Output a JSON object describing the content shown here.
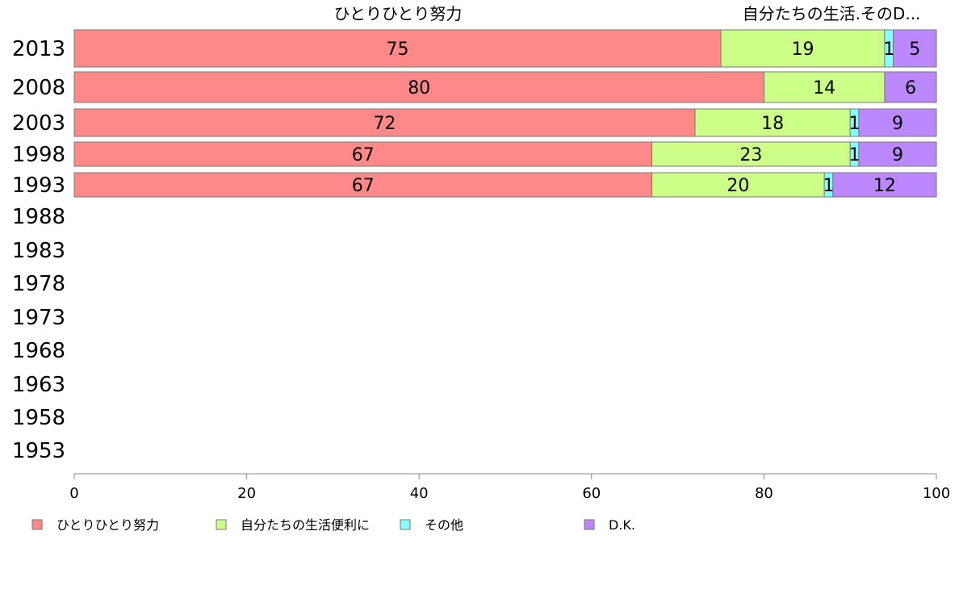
{
  "chart_data": {
    "type": "bar",
    "orientation": "horizontal",
    "stacked": true,
    "categories": [
      "2013",
      "2008",
      "2003",
      "1998",
      "1993",
      "1988",
      "1983",
      "1978",
      "1973",
      "1968",
      "1963",
      "1958",
      "1953"
    ],
    "series": [
      {
        "name": "ひとりひとり努力",
        "color": "#ff8888",
        "values": [
          75,
          80,
          72,
          67,
          67,
          null,
          null,
          null,
          null,
          null,
          null,
          null,
          null
        ]
      },
      {
        "name": "自分たちの生活便利に",
        "color": "#ccff88",
        "values": [
          19,
          14,
          18,
          23,
          20,
          null,
          null,
          null,
          null,
          null,
          null,
          null,
          null
        ]
      },
      {
        "name": "その他",
        "color": "#88ffff",
        "values": [
          1,
          0,
          1,
          1,
          1,
          null,
          null,
          null,
          null,
          null,
          null,
          null,
          null
        ]
      },
      {
        "name": "D.K.",
        "color": "#bb88ff",
        "values": [
          5,
          6,
          9,
          9,
          12,
          null,
          null,
          null,
          null,
          null,
          null,
          null,
          null
        ]
      }
    ],
    "segment_labels": [
      [
        "75",
        "19",
        "1",
        "5"
      ],
      [
        "80",
        "14",
        "",
        "6"
      ],
      [
        "72",
        "18",
        "1",
        "9"
      ],
      [
        "67",
        "23",
        "1",
        "9"
      ],
      [
        "67",
        "20",
        "1",
        "12"
      ]
    ],
    "column_headers": [
      "ひとりひとり努力",
      "自分たちの生活.そのD..."
    ],
    "xlim": [
      0,
      100
    ],
    "xticks": [
      "0",
      "20",
      "40",
      "60",
      "80",
      "100"
    ],
    "grid": false,
    "legend_position": "bottom",
    "xlabel": "",
    "ylabel": ""
  }
}
